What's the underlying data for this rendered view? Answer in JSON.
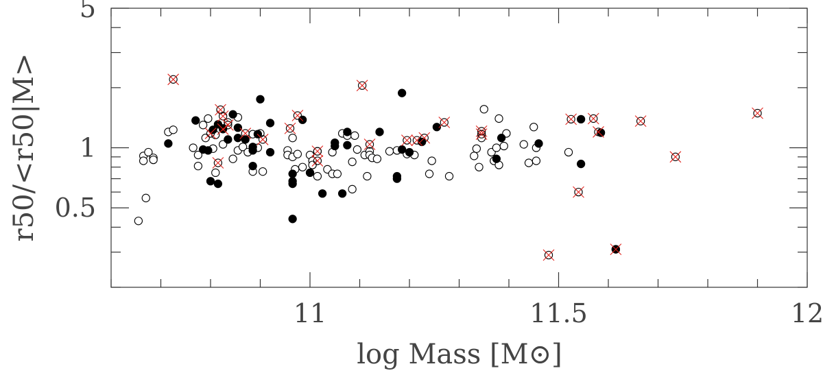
{
  "chart_data": {
    "type": "scatter",
    "xlabel": "log Mass [M⊙]",
    "ylabel": "r50/<r50|M>",
    "xlim": [
      10.6,
      12.0
    ],
    "ylim": [
      0.2,
      5.0
    ],
    "yscale": "log",
    "x_ticks": [
      {
        "value": 11.0,
        "label": "11"
      },
      {
        "value": 11.5,
        "label": "11.5"
      },
      {
        "value": 12.0,
        "label": "12"
      }
    ],
    "y_ticks": [
      {
        "value": 0.5,
        "label": "0.5"
      },
      {
        "value": 1.0,
        "label": "1"
      },
      {
        "value": 5.0,
        "label": "5"
      }
    ],
    "grid": false,
    "legend": "none",
    "colors": {
      "filled": "#000000",
      "open": "#ffffff",
      "flag": "#e0211b"
    },
    "series": [
      {
        "marker": "open-circle",
        "points": [
          [
            10.655,
            0.43
          ],
          [
            10.665,
            0.91
          ],
          [
            10.665,
            0.86
          ],
          [
            10.67,
            0.56
          ],
          [
            10.675,
            0.95
          ],
          [
            10.685,
            0.89
          ],
          [
            10.685,
            0.87
          ],
          [
            10.715,
            1.2
          ],
          [
            10.725,
            1.23
          ],
          [
            10.765,
            1.0
          ],
          [
            10.775,
            0.92
          ],
          [
            10.775,
            0.81
          ],
          [
            10.785,
            1.3
          ],
          [
            10.79,
            1.12
          ],
          [
            10.795,
            1.4
          ],
          [
            10.805,
            0.99
          ],
          [
            10.81,
            1.16
          ],
          [
            10.81,
            0.75
          ],
          [
            10.825,
            1.04
          ],
          [
            10.835,
            1.34
          ],
          [
            10.845,
            0.88
          ],
          [
            10.855,
            0.97
          ],
          [
            10.855,
            1.42
          ],
          [
            10.865,
            1.01
          ],
          [
            10.875,
            0.95
          ],
          [
            10.885,
            1.17
          ],
          [
            10.885,
            0.76
          ],
          [
            10.895,
            1.0
          ],
          [
            10.9,
            1.18
          ],
          [
            10.905,
            0.76
          ],
          [
            10.955,
            0.97
          ],
          [
            10.955,
            0.92
          ],
          [
            10.965,
            0.9
          ],
          [
            10.965,
            1.12
          ],
          [
            10.97,
            0.78
          ],
          [
            10.975,
            0.93
          ],
          [
            10.985,
            0.8
          ],
          [
            11.0,
            0.92
          ],
          [
            11.005,
            0.86
          ],
          [
            11.005,
            0.82
          ],
          [
            11.015,
            0.96
          ],
          [
            11.015,
            0.72
          ],
          [
            11.035,
            0.78
          ],
          [
            11.045,
            0.74
          ],
          [
            11.045,
            0.95
          ],
          [
            11.055,
            0.74
          ],
          [
            11.065,
            1.18
          ],
          [
            11.075,
            1.15
          ],
          [
            11.085,
            0.62
          ],
          [
            11.085,
            0.85
          ],
          [
            11.09,
            1.15
          ],
          [
            11.095,
            0.98
          ],
          [
            11.11,
            0.92
          ],
          [
            11.115,
            0.72
          ],
          [
            11.12,
            0.96
          ],
          [
            11.12,
            0.92
          ],
          [
            11.125,
            0.89
          ],
          [
            11.135,
            0.88
          ],
          [
            11.16,
            0.96
          ],
          [
            11.175,
            0.97
          ],
          [
            11.195,
            0.93
          ],
          [
            11.21,
            0.92
          ],
          [
            11.24,
            0.74
          ],
          [
            11.245,
            0.86
          ],
          [
            11.28,
            0.72
          ],
          [
            11.33,
            0.91
          ],
          [
            11.335,
            0.99
          ],
          [
            11.34,
            0.8
          ],
          [
            11.345,
            1.12
          ],
          [
            11.35,
            1.56
          ],
          [
            11.365,
            0.95
          ],
          [
            11.37,
            0.86
          ],
          [
            11.375,
            1.0
          ],
          [
            11.38,
            1.4
          ],
          [
            11.38,
            0.82
          ],
          [
            11.39,
            1.02
          ],
          [
            11.395,
            1.18
          ],
          [
            11.43,
            1.04
          ],
          [
            11.44,
            0.84
          ],
          [
            11.45,
            1.27
          ],
          [
            11.455,
            1.0
          ],
          [
            11.455,
            0.86
          ],
          [
            11.52,
            0.95
          ]
        ]
      },
      {
        "marker": "filled-circle",
        "points": [
          [
            10.715,
            1.05
          ],
          [
            10.77,
            1.37
          ],
          [
            10.785,
            0.98
          ],
          [
            10.795,
            0.97
          ],
          [
            10.8,
            0.68
          ],
          [
            10.805,
            1.23
          ],
          [
            10.815,
            1.31
          ],
          [
            10.815,
            0.66
          ],
          [
            10.825,
            1.25
          ],
          [
            10.835,
            1.1
          ],
          [
            10.845,
            1.47
          ],
          [
            10.855,
            1.26
          ],
          [
            10.855,
            1.12
          ],
          [
            10.87,
            1.1
          ],
          [
            10.885,
            1.01
          ],
          [
            10.885,
            0.97
          ],
          [
            10.885,
            0.81
          ],
          [
            10.895,
            1.17
          ],
          [
            10.9,
            1.75
          ],
          [
            10.92,
            0.95
          ],
          [
            10.92,
            1.33
          ],
          [
            10.965,
            0.74
          ],
          [
            10.965,
            0.68
          ],
          [
            10.965,
            0.66
          ],
          [
            10.965,
            0.44
          ],
          [
            10.985,
            1.38
          ],
          [
            11.0,
            0.75
          ],
          [
            11.025,
            0.59
          ],
          [
            11.05,
            1.06
          ],
          [
            11.05,
            1.02
          ],
          [
            11.065,
            0.59
          ],
          [
            11.075,
            1.03
          ],
          [
            11.075,
            1.2
          ],
          [
            11.14,
            1.2
          ],
          [
            11.175,
            0.72
          ],
          [
            11.175,
            0.7
          ],
          [
            11.185,
            0.98
          ],
          [
            11.185,
            1.88
          ],
          [
            11.2,
            0.95
          ],
          [
            11.225,
            1.07
          ],
          [
            11.255,
            1.27
          ],
          [
            11.375,
            0.88
          ],
          [
            11.385,
            1.12
          ],
          [
            11.46,
            1.05
          ],
          [
            11.545,
            1.39
          ],
          [
            11.545,
            0.83
          ],
          [
            11.585,
            1.19
          ],
          [
            11.615,
            0.31
          ]
        ]
      },
      {
        "marker": "crossed-circle",
        "points": [
          [
            10.725,
            2.2
          ],
          [
            10.8,
            1.18
          ],
          [
            10.815,
            0.84
          ],
          [
            10.82,
            1.55
          ],
          [
            10.825,
            1.44
          ],
          [
            10.825,
            1.24
          ],
          [
            10.835,
            1.3
          ],
          [
            10.87,
            1.18
          ],
          [
            10.905,
            1.1
          ],
          [
            10.96,
            1.25
          ],
          [
            10.975,
            1.45
          ],
          [
            11.015,
            0.96
          ],
          [
            11.015,
            0.86
          ],
          [
            11.105,
            2.05
          ],
          [
            11.12,
            1.04
          ],
          [
            11.195,
            1.09
          ],
          [
            11.215,
            1.09
          ],
          [
            11.23,
            1.12
          ],
          [
            11.27,
            1.34
          ],
          [
            11.345,
            1.21
          ],
          [
            11.345,
            1.17
          ],
          [
            11.48,
            0.29
          ],
          [
            11.525,
            1.39
          ],
          [
            11.54,
            0.6
          ],
          [
            11.57,
            1.4
          ],
          [
            11.58,
            1.2
          ],
          [
            11.665,
            1.36
          ],
          [
            11.735,
            0.9
          ],
          [
            11.9,
            1.49
          ],
          [
            11.615,
            0.31
          ]
        ]
      }
    ]
  }
}
